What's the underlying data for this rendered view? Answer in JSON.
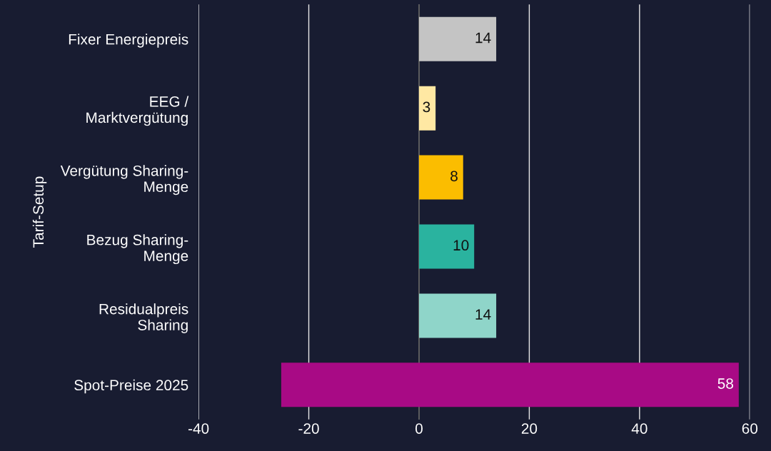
{
  "chart_data": {
    "type": "bar",
    "orientation": "horizontal",
    "ylabel": "Tarif-Setup",
    "categories": [
      "Fixer Energiepreis",
      "EEG /\nMarktvergütung",
      "Vergütung Sharing-\nMenge",
      "Bezug Sharing-\nMenge",
      "Residualpreis\nSharing",
      "Spot-Preise 2025"
    ],
    "base": [
      0,
      0,
      0,
      0,
      0,
      -25
    ],
    "values": [
      14,
      3,
      8,
      10,
      14,
      83
    ],
    "value_labels": [
      "14",
      "3",
      "8",
      "10",
      "14",
      "58"
    ],
    "colors": [
      "#c4c4c4",
      "#ffe8a3",
      "#fbbd00",
      "#2ab39f",
      "#8fd5c9",
      "#a80a85"
    ],
    "xlim": [
      -40,
      60
    ],
    "xticks": [
      -40,
      -20,
      0,
      20,
      40,
      60
    ],
    "ref_lines": [
      {
        "axis": "x",
        "value": 0,
        "label": null,
        "color": "#3a3a3a"
      }
    ],
    "grid": "x",
    "legend": false
  }
}
